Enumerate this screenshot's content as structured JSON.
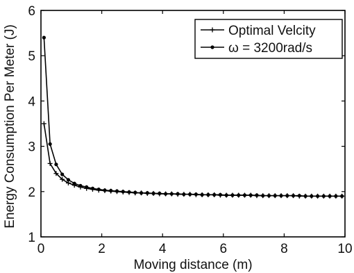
{
  "chart_data": {
    "type": "line",
    "title": "",
    "xlabel": "Moving distance (m)",
    "ylabel": "Energy Consumption Per Meter (J)",
    "xlim": [
      0,
      10
    ],
    "ylim": [
      1,
      6
    ],
    "xticks": [
      0,
      2,
      4,
      6,
      8,
      10
    ],
    "yticks": [
      1,
      2,
      3,
      4,
      5,
      6
    ],
    "grid": false,
    "legend_position": "top-right",
    "line_color": "#000000",
    "series": [
      {
        "name": "Optimal Velcity",
        "marker": "plus",
        "x": [
          0.1,
          0.3,
          0.5,
          0.7,
          0.9,
          1.1,
          1.3,
          1.5,
          1.7,
          1.9,
          2.1,
          2.3,
          2.5,
          2.7,
          2.9,
          3.1,
          3.3,
          3.5,
          3.7,
          3.9,
          4.1,
          4.3,
          4.5,
          4.7,
          4.9,
          5.1,
          5.3,
          5.5,
          5.7,
          5.9,
          6.1,
          6.3,
          6.5,
          6.7,
          6.9,
          7.1,
          7.3,
          7.5,
          7.7,
          7.9,
          8.1,
          8.3,
          8.5,
          8.7,
          8.9,
          9.1,
          9.3,
          9.5,
          9.7,
          9.9
        ],
        "y": [
          3.5,
          2.62,
          2.4,
          2.27,
          2.19,
          2.14,
          2.1,
          2.07,
          2.05,
          2.03,
          2.02,
          2.01,
          2.0,
          1.99,
          1.98,
          1.97,
          1.97,
          1.96,
          1.96,
          1.95,
          1.95,
          1.95,
          1.94,
          1.94,
          1.94,
          1.93,
          1.93,
          1.93,
          1.93,
          1.92,
          1.92,
          1.92,
          1.92,
          1.92,
          1.92,
          1.91,
          1.91,
          1.91,
          1.91,
          1.91,
          1.91,
          1.91,
          1.9,
          1.9,
          1.9,
          1.9,
          1.9,
          1.9,
          1.9,
          1.9
        ]
      },
      {
        "name": "ω = 3200rad/s",
        "marker": "dot",
        "x": [
          0.1,
          0.3,
          0.5,
          0.7,
          0.9,
          1.1,
          1.3,
          1.5,
          1.7,
          1.9,
          2.1,
          2.3,
          2.5,
          2.7,
          2.9,
          3.1,
          3.3,
          3.5,
          3.7,
          3.9,
          4.1,
          4.3,
          4.5,
          4.7,
          4.9,
          5.1,
          5.3,
          5.5,
          5.7,
          5.9,
          6.1,
          6.3,
          6.5,
          6.7,
          6.9,
          7.1,
          7.3,
          7.5,
          7.7,
          7.9,
          8.1,
          8.3,
          8.5,
          8.7,
          8.9,
          9.1,
          9.3,
          9.5,
          9.7,
          9.9
        ],
        "y": [
          5.4,
          3.05,
          2.6,
          2.38,
          2.26,
          2.18,
          2.13,
          2.1,
          2.07,
          2.05,
          2.03,
          2.02,
          2.01,
          2.0,
          1.99,
          1.98,
          1.97,
          1.97,
          1.96,
          1.96,
          1.95,
          1.95,
          1.95,
          1.94,
          1.94,
          1.94,
          1.93,
          1.93,
          1.93,
          1.93,
          1.92,
          1.92,
          1.92,
          1.92,
          1.92,
          1.92,
          1.91,
          1.91,
          1.91,
          1.91,
          1.91,
          1.91,
          1.91,
          1.9,
          1.9,
          1.9,
          1.9,
          1.9,
          1.9,
          1.9
        ]
      }
    ]
  }
}
